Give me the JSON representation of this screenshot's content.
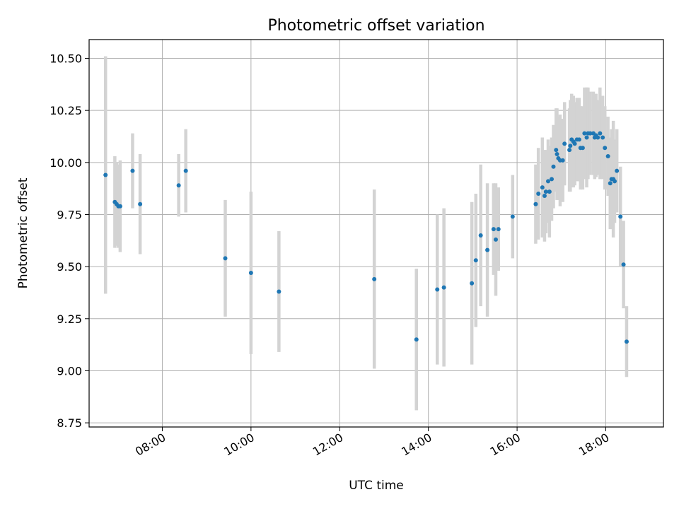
{
  "chart_data": {
    "type": "scatter",
    "title": "Photometric offset variation",
    "xlabel": "UTC time",
    "ylabel": "Photometric offset",
    "grid": true,
    "legend": false,
    "xlim": [
      6.35,
      19.3
    ],
    "ylim": [
      8.73,
      10.59
    ],
    "x_ticks": [
      "08:00",
      "10:00",
      "12:00",
      "14:00",
      "16:00",
      "18:00"
    ],
    "x_tick_hours": [
      8,
      10,
      12,
      14,
      16,
      18
    ],
    "y_ticks": [
      "8.75",
      "9.00",
      "9.25",
      "9.50",
      "9.75",
      "10.00",
      "10.25",
      "10.50"
    ],
    "y_tick_values": [
      8.75,
      9.0,
      9.25,
      9.5,
      9.75,
      10.0,
      10.25,
      10.5
    ],
    "colors": {
      "marker": "#1f77b4",
      "errorbar": "#d3d3d3",
      "grid": "#b0b0b0",
      "axes": "#000000"
    },
    "series": [
      {
        "x_hours": [
          6.72,
          6.93,
          6.97,
          7.01,
          7.05,
          7.33,
          7.5,
          8.37,
          8.53,
          9.42,
          10.0,
          10.63,
          12.78,
          13.73,
          14.2,
          14.35,
          14.98,
          15.07,
          15.18,
          15.33,
          15.47,
          15.52,
          15.58,
          15.9,
          16.42,
          16.48,
          16.57,
          16.62,
          16.65,
          16.7,
          16.73,
          16.78,
          16.82,
          16.88,
          16.9,
          16.93,
          16.97,
          17.03,
          17.07,
          17.18,
          17.2,
          17.23,
          17.27,
          17.3,
          17.35,
          17.4,
          17.43,
          17.48,
          17.52,
          17.57,
          17.6,
          17.65,
          17.72,
          17.75,
          17.78,
          17.82,
          17.87,
          17.93,
          17.98,
          18.05,
          18.1,
          18.13,
          18.17,
          18.2,
          18.25,
          18.33,
          18.4,
          18.47
        ],
        "y": [
          9.94,
          9.81,
          9.8,
          9.79,
          9.79,
          9.96,
          9.8,
          9.89,
          9.96,
          9.54,
          9.47,
          9.38,
          9.44,
          9.15,
          9.39,
          9.4,
          9.42,
          9.53,
          9.65,
          9.58,
          9.68,
          9.63,
          9.68,
          9.74,
          9.8,
          9.85,
          9.88,
          9.84,
          9.86,
          9.91,
          9.86,
          9.92,
          9.98,
          10.06,
          10.04,
          10.02,
          10.01,
          10.01,
          10.09,
          10.06,
          10.08,
          10.11,
          10.1,
          10.09,
          10.11,
          10.11,
          10.07,
          10.07,
          10.14,
          10.12,
          10.14,
          10.14,
          10.14,
          10.12,
          10.13,
          10.12,
          10.14,
          10.12,
          10.07,
          10.03,
          9.9,
          9.92,
          9.92,
          9.91,
          9.96,
          9.74,
          9.51,
          9.14
        ],
        "yerr": [
          0.57,
          0.22,
          0.2,
          0.2,
          0.22,
          0.18,
          0.24,
          0.15,
          0.2,
          0.28,
          0.39,
          0.29,
          0.43,
          0.34,
          0.36,
          0.38,
          0.39,
          0.32,
          0.34,
          0.32,
          0.22,
          0.27,
          0.2,
          0.2,
          0.19,
          0.22,
          0.24,
          0.22,
          0.2,
          0.2,
          0.22,
          0.2,
          0.2,
          0.2,
          0.22,
          0.2,
          0.22,
          0.2,
          0.2,
          0.2,
          0.22,
          0.22,
          0.22,
          0.2,
          0.2,
          0.2,
          0.2,
          0.2,
          0.22,
          0.24,
          0.22,
          0.2,
          0.2,
          0.2,
          0.2,
          0.18,
          0.22,
          0.2,
          0.2,
          0.19,
          0.22,
          0.24,
          0.28,
          0.2,
          0.2,
          0.24,
          0.21,
          0.17
        ]
      }
    ]
  }
}
